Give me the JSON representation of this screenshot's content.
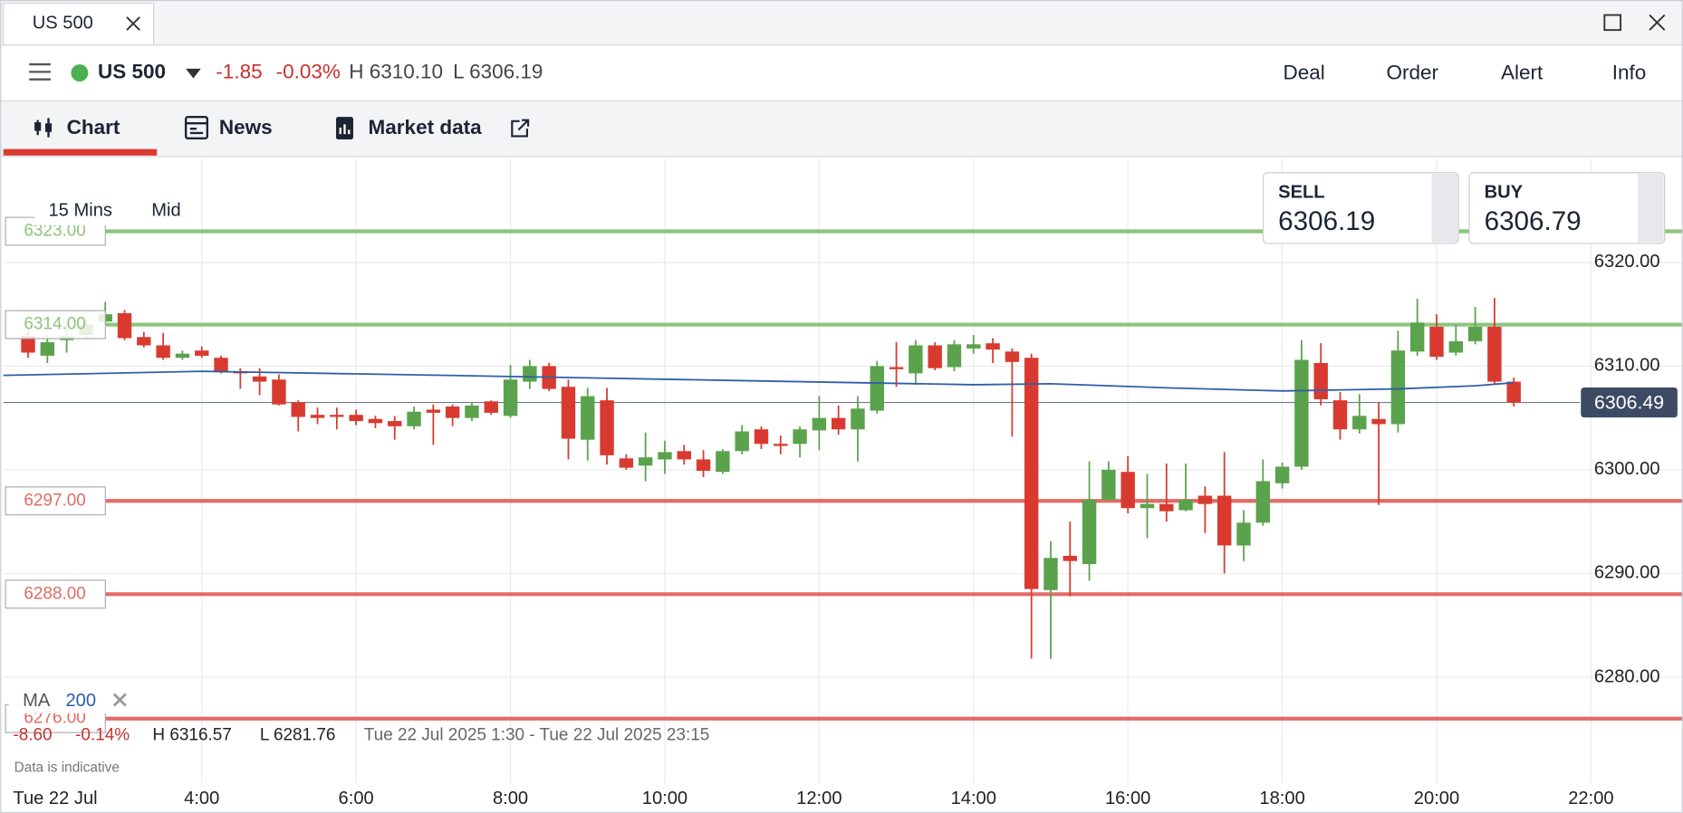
{
  "window_tab": {
    "title": "US 500"
  },
  "instrument_bar": {
    "name": "US 500",
    "change": "-1.85",
    "change_pct": "-0.03%",
    "high": "H 6310.10",
    "low": "L 6306.19",
    "menu": [
      "Deal",
      "Order",
      "Alert",
      "Info"
    ]
  },
  "tabs": [
    "Chart",
    "News",
    "Market data"
  ],
  "quote": {
    "sell_label": "SELL",
    "sell": "6306.19",
    "buy_label": "BUY",
    "buy": "6306.79"
  },
  "chart_data": {
    "type": "candlestick",
    "interval": "15 Mins",
    "price_type": "Mid",
    "date_label": "Tue 22 Jul",
    "x": [
      1.75,
      2,
      2.25,
      2.5,
      2.75,
      3,
      3.25,
      3.5,
      3.75,
      4,
      4.25,
      4.5,
      4.75,
      5,
      5.25,
      5.5,
      5.75,
      6,
      6.25,
      6.5,
      6.75,
      7,
      7.25,
      7.5,
      7.75,
      8,
      8.25,
      8.5,
      8.75,
      9,
      9.25,
      9.5,
      9.75,
      10,
      10.25,
      10.5,
      10.75,
      11,
      11.25,
      11.5,
      11.75,
      12,
      12.25,
      12.5,
      12.75,
      13,
      13.25,
      13.5,
      13.75,
      14,
      14.25,
      14.5,
      14.75,
      15,
      15.25,
      15.5,
      15.75,
      16,
      16.25,
      16.5,
      16.75,
      17,
      17.25,
      17.5,
      17.75,
      18,
      18.25,
      18.5,
      18.75,
      19,
      19.25,
      19.5,
      19.75,
      20,
      20.25,
      20.5,
      20.75,
      21
    ],
    "open": [
      6312.9,
      6311.0,
      6312.5,
      6313.0,
      6314.3,
      6315.1,
      6312.8,
      6312.0,
      6310.8,
      6311.5,
      6310.8,
      6309.5,
      6309.0,
      6308.7,
      6306.5,
      6305.3,
      6305.3,
      6305.3,
      6304.9,
      6304.7,
      6304.2,
      6305.8,
      6306.1,
      6305.0,
      6306.6,
      6305.2,
      6308.5,
      6310.0,
      6308.0,
      6302.9,
      6306.7,
      6301.1,
      6300.4,
      6301.0,
      6301.8,
      6301.0,
      6299.8,
      6301.8,
      6303.9,
      6302.5,
      6302.5,
      6303.8,
      6305.0,
      6303.9,
      6305.7,
      6309.9,
      6309.3,
      6312.0,
      6309.9,
      6311.7,
      6312.2,
      6311.4,
      6310.8,
      6288.4,
      6291.7,
      6290.9,
      6297.1,
      6299.8,
      6296.3,
      6296.7,
      6296.1,
      6297.5,
      6297.5,
      6292.7,
      6294.9,
      6298.7,
      6300.3,
      6310.3,
      6306.7,
      6303.9,
      6304.9,
      6304.4,
      6311.4,
      6313.8,
      6311.3,
      6312.4,
      6313.8,
      6308.5
    ],
    "high": [
      6313.3,
      6313.0,
      6314.0,
      6314.5,
      6316.2,
      6315.4,
      6313.3,
      6313.2,
      6311.5,
      6311.9,
      6311.0,
      6309.8,
      6309.8,
      6309.2,
      6306.7,
      6306.0,
      6306.0,
      6305.8,
      6305.2,
      6305.2,
      6306.1,
      6306.3,
      6306.3,
      6306.5,
      6306.7,
      6310.1,
      6310.6,
      6310.3,
      6308.7,
      6307.9,
      6307.9,
      6301.5,
      6303.6,
      6302.8,
      6302.4,
      6301.9,
      6302.0,
      6304.3,
      6304.2,
      6303.3,
      6304.2,
      6307.1,
      6306.2,
      6307.1,
      6310.5,
      6312.3,
      6312.5,
      6312.3,
      6312.5,
      6313.0,
      6312.7,
      6311.7,
      6311.2,
      6293.1,
      6295.0,
      6300.8,
      6300.8,
      6301.3,
      6299.6,
      6300.6,
      6300.6,
      6298.4,
      6301.7,
      6296.1,
      6301.0,
      6300.7,
      6312.5,
      6312.2,
      6307.5,
      6307.3,
      6306.5,
      6313.4,
      6316.5,
      6315.0,
      6314.0,
      6315.7,
      6316.57,
      6308.9
    ],
    "low": [
      6310.8,
      6310.3,
      6311.3,
      6312.6,
      6314.0,
      6312.5,
      6311.8,
      6310.6,
      6310.6,
      6310.8,
      6309.3,
      6307.8,
      6307.2,
      6306.2,
      6303.7,
      6304.4,
      6303.9,
      6304.3,
      6304.0,
      6302.9,
      6303.9,
      6302.4,
      6304.2,
      6304.7,
      6305.3,
      6305.0,
      6307.8,
      6307.6,
      6301.0,
      6300.9,
      6300.5,
      6300.0,
      6298.9,
      6299.6,
      6300.5,
      6299.3,
      6299.6,
      6301.5,
      6302.0,
      6301.5,
      6301.2,
      6301.9,
      6303.4,
      6300.8,
      6305.4,
      6308.0,
      6308.2,
      6309.6,
      6309.5,
      6311.2,
      6310.3,
      6303.2,
      6281.8,
      6281.76,
      6287.8,
      6289.3,
      6297.0,
      6295.8,
      6293.4,
      6295.0,
      6296.0,
      6293.9,
      6290.0,
      6291.2,
      6294.6,
      6298.2,
      6300.0,
      6306.2,
      6302.9,
      6303.5,
      6296.6,
      6303.6,
      6311.0,
      6310.6,
      6311.0,
      6312.1,
      6308.2,
      6306.1
    ],
    "close": [
      6311.3,
      6312.3,
      6312.9,
      6314.0,
      6315.0,
      6312.7,
      6312.0,
      6310.8,
      6311.2,
      6311.0,
      6309.5,
      6309.3,
      6308.5,
      6306.3,
      6305.1,
      6305.0,
      6305.1,
      6304.7,
      6304.5,
      6304.2,
      6305.6,
      6305.5,
      6305.0,
      6306.2,
      6305.5,
      6308.7,
      6310.0,
      6307.8,
      6303.0,
      6307.1,
      6301.4,
      6300.2,
      6301.2,
      6301.7,
      6301.0,
      6299.9,
      6301.8,
      6303.7,
      6302.5,
      6302.3,
      6303.9,
      6305.0,
      6303.9,
      6305.9,
      6310.0,
      6309.7,
      6312.0,
      6309.8,
      6312.1,
      6312.1,
      6311.6,
      6310.4,
      6288.5,
      6291.5,
      6291.2,
      6297.1,
      6300.0,
      6296.3,
      6296.7,
      6296.0,
      6297.1,
      6296.7,
      6292.7,
      6294.9,
      6298.9,
      6300.3,
      6310.6,
      6306.8,
      6303.9,
      6305.2,
      6304.4,
      6311.5,
      6314.2,
      6310.9,
      6312.4,
      6313.8,
      6308.5,
      6306.49
    ],
    "up_color": "#5ba24c",
    "down_color": "#d93a2f",
    "xlim": [
      1.43,
      23.19
    ],
    "ylim": [
      6270,
      6330
    ],
    "xticks": [
      {
        "value": 4,
        "label": "4:00"
      },
      {
        "value": 6,
        "label": "6:00"
      },
      {
        "value": 8,
        "label": "8:00"
      },
      {
        "value": 10,
        "label": "10:00"
      },
      {
        "value": 12,
        "label": "12:00"
      },
      {
        "value": 14,
        "label": "14:00"
      },
      {
        "value": 16,
        "label": "16:00"
      },
      {
        "value": 18,
        "label": "18:00"
      },
      {
        "value": 20,
        "label": "20:00"
      },
      {
        "value": 22,
        "label": "22:00"
      }
    ],
    "yticks": [
      {
        "value": 6280,
        "label": "6280.00"
      },
      {
        "value": 6290,
        "label": "6290.00"
      },
      {
        "value": 6300,
        "label": "6300.00"
      },
      {
        "value": 6310,
        "label": "6310.00"
      },
      {
        "value": 6320,
        "label": "6320.00"
      }
    ],
    "grid": true,
    "levels": [
      {
        "value": 6323,
        "label": "6323.00",
        "color": "#8cc47c"
      },
      {
        "value": 6314,
        "label": "6314.00",
        "color": "#8cc47c"
      },
      {
        "value": 6297,
        "label": "6297.00",
        "color": "#e26b67"
      },
      {
        "value": 6288,
        "label": "6288.00",
        "color": "#e26b67"
      },
      {
        "value": 6276,
        "label": "6276.00",
        "color": "#e26b67"
      }
    ],
    "current_price": {
      "value": 6306.49,
      "label": "6306.49"
    },
    "moving_average": {
      "name": "MA",
      "period": 200,
      "color": "#2f5ea8",
      "x": [
        1.43,
        4,
        8,
        11,
        14,
        15,
        16.5,
        18,
        19.5,
        20.5,
        21
      ],
      "values": [
        6309.1,
        6309.5,
        6309.0,
        6308.6,
        6308.2,
        6308.3,
        6307.9,
        6307.6,
        6307.8,
        6308.1,
        6308.4
      ]
    },
    "stats": {
      "change": "-8.60",
      "change_pct": "-0.14%",
      "high": "H 6316.57",
      "low": "L 6281.76",
      "range": "Tue 22 Jul 2025 1:30 - Tue 22 Jul 2025 23:15"
    },
    "disclaimer": "Data is indicative"
  }
}
